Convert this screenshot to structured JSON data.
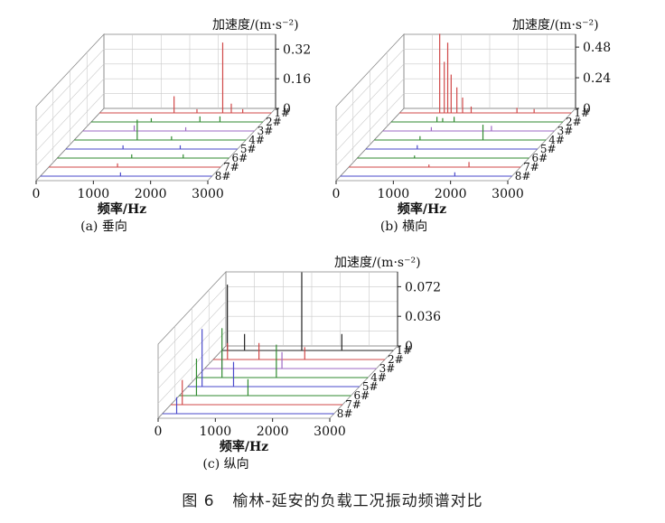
{
  "caption": {
    "label": "图 6",
    "text": "榆林-延安的负载工况振动频谱对比"
  },
  "colors": {
    "grid": "#c9c9c9",
    "axis": "#222222",
    "box": "#8a8a8a"
  },
  "chart_data": [
    {
      "type": "waterfall",
      "subtitle": "(a)  垂向",
      "xlabel": "频率/Hz",
      "zlabel": "加速度/(m·s⁻²)",
      "x_ticks": [
        "0",
        "1000",
        "2000",
        "3000"
      ],
      "z_ticks": [
        "0",
        "0.16",
        "0.32"
      ],
      "xlim": [
        0,
        3000
      ],
      "zlim": [
        0,
        0.4
      ],
      "series_labels": [
        "1#",
        "2#",
        "3#",
        "4#",
        "5#",
        "6#",
        "7#",
        "8#"
      ],
      "series_colors": [
        "#d04848",
        "#2f8a2f",
        "#9e6ac4",
        "#2f8a2f",
        "#4a4acb",
        "#2f8a2f",
        "#d04848",
        "#4a4acb"
      ],
      "series": [
        {
          "name": "1#",
          "peaks": [
            [
              1300,
              0.09
            ],
            [
              1700,
              0.02
            ],
            [
              2150,
              0.38
            ],
            [
              2300,
              0.05
            ],
            [
              2500,
              0.02
            ]
          ]
        },
        {
          "name": "2#",
          "peaks": [
            [
              1050,
              0.02
            ],
            [
              1900,
              0.03
            ],
            [
              2250,
              0.03
            ]
          ]
        },
        {
          "name": "3#",
          "peaks": [
            [
              900,
              0.03
            ],
            [
              1800,
              0.02
            ]
          ]
        },
        {
          "name": "4#",
          "peaks": [
            [
              1100,
              0.11
            ],
            [
              1700,
              0.02
            ]
          ]
        },
        {
          "name": "5#",
          "peaks": [
            [
              1000,
              0.02
            ],
            [
              2000,
              0.02
            ]
          ]
        },
        {
          "name": "6#",
          "peaks": [
            [
              1300,
              0.02
            ],
            [
              2200,
              0.02
            ]
          ]
        },
        {
          "name": "7#",
          "peaks": [
            [
              1200,
              0.02
            ]
          ]
        },
        {
          "name": "8#",
          "peaks": [
            [
              1400,
              0.02
            ]
          ]
        }
      ]
    },
    {
      "type": "waterfall",
      "subtitle": "(b)  横向",
      "xlabel": "频率/Hz",
      "zlabel": "加速度/(m·s⁻²)",
      "x_ticks": [
        "0",
        "1000",
        "2000",
        "3000"
      ],
      "z_ticks": [
        "0",
        "0.24",
        "0.48"
      ],
      "xlim": [
        0,
        3000
      ],
      "zlim": [
        0,
        0.58
      ],
      "series_labels": [
        "1#",
        "2#",
        "3#",
        "4#",
        "5#",
        "6#",
        "7#",
        "8#"
      ],
      "series_colors": [
        "#d04848",
        "#2f8a2f",
        "#9e6ac4",
        "#2f8a2f",
        "#4a4acb",
        "#2f8a2f",
        "#d04848",
        "#4a4acb"
      ],
      "series": [
        {
          "name": "1#",
          "peaks": [
            [
              700,
              0.62
            ],
            [
              780,
              0.4
            ],
            [
              840,
              0.55
            ],
            [
              900,
              0.3
            ],
            [
              1000,
              0.2
            ],
            [
              1100,
              0.12
            ],
            [
              1250,
              0.05
            ],
            [
              2050,
              0.04
            ],
            [
              2350,
              0.03
            ]
          ]
        },
        {
          "name": "2#",
          "peaks": [
            [
              800,
              0.04
            ],
            [
              900,
              0.03
            ],
            [
              1100,
              0.04
            ]
          ]
        },
        {
          "name": "3#",
          "peaks": [
            [
              850,
              0.03
            ],
            [
              1900,
              0.04
            ]
          ]
        },
        {
          "name": "4#",
          "peaks": [
            [
              1900,
              0.12
            ],
            [
              800,
              0.03
            ]
          ]
        },
        {
          "name": "5#",
          "peaks": [
            [
              900,
              0.03
            ]
          ]
        },
        {
          "name": "6#",
          "peaks": [
            [
              1000,
              0.02
            ]
          ]
        },
        {
          "name": "7#",
          "peaks": [
            [
              1400,
              0.02
            ],
            [
              2100,
              0.04
            ]
          ]
        },
        {
          "name": "8#",
          "peaks": [
            [
              2000,
              0.03
            ]
          ]
        }
      ]
    },
    {
      "type": "waterfall",
      "subtitle": "(c)  纵向",
      "xlabel": "频率/Hz",
      "zlabel": "加速度/(m·s⁻²)",
      "x_ticks": [
        "0",
        "1000",
        "2000",
        "3000"
      ],
      "z_ticks": [
        "0",
        "0.036",
        "0.072"
      ],
      "xlim": [
        0,
        3000
      ],
      "zlim": [
        0,
        0.09
      ],
      "series_labels": [
        "1#",
        "2#",
        "3#",
        "4#",
        "5#",
        "6#",
        "7#",
        "8#"
      ],
      "series_colors": [
        "#222222",
        "#d04848",
        "#9e6ac4",
        "#2f8a2f",
        "#4a4acb",
        "#2f8a2f",
        "#d04848",
        "#4a4acb"
      ],
      "series": [
        {
          "name": "1#",
          "peaks": [
            [
              100,
              0.08
            ],
            [
              400,
              0.02
            ],
            [
              1400,
              0.095
            ],
            [
              2100,
              0.02
            ]
          ]
        },
        {
          "name": "2#",
          "peaks": [
            [
              250,
              0.02
            ],
            [
              800,
              0.02
            ],
            [
              1600,
              0.015
            ]
          ]
        },
        {
          "name": "3#",
          "peaks": [
            [
              300,
              0.02
            ],
            [
              1350,
              0.02
            ]
          ]
        },
        {
          "name": "4#",
          "peaks": [
            [
              450,
              0.06
            ],
            [
              1400,
              0.04
            ]
          ]
        },
        {
          "name": "5#",
          "peaks": [
            [
              250,
              0.07
            ],
            [
              800,
              0.03
            ]
          ]
        },
        {
          "name": "6#",
          "peaks": [
            [
              300,
              0.045
            ],
            [
              1200,
              0.02
            ]
          ]
        },
        {
          "name": "7#",
          "peaks": [
            [
              200,
              0.03
            ]
          ]
        },
        {
          "name": "8#",
          "peaks": [
            [
              250,
              0.02
            ]
          ]
        }
      ]
    }
  ]
}
